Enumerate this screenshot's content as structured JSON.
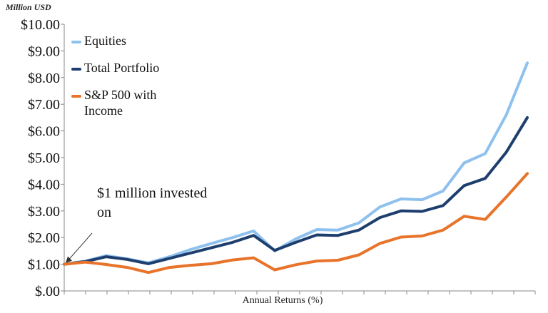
{
  "chart_data": {
    "type": "line",
    "title": "",
    "unit_label": "Million USD",
    "xlabel": "Annual Returns (%)",
    "ylabel": "",
    "ylim": [
      0,
      10
    ],
    "y_ticks": [
      "$10.00",
      "$9.00",
      "$8.00",
      "$7.00",
      "$6.00",
      "$5.00",
      "$4.00",
      "$3.00",
      "$2.00",
      "$1.00",
      "$.00"
    ],
    "grid": false,
    "legend_position": "top-left",
    "x": [
      0,
      1,
      2,
      3,
      4,
      5,
      6,
      7,
      8,
      9,
      10,
      11,
      12,
      13,
      14,
      15,
      16,
      17,
      18,
      19,
      20,
      21,
      22
    ],
    "series": [
      {
        "name": "Equities",
        "color": "#8EC1EE",
        "values": [
          1.0,
          1.12,
          1.32,
          1.2,
          1.05,
          1.28,
          1.55,
          1.78,
          2.0,
          2.25,
          1.5,
          1.95,
          2.3,
          2.28,
          2.55,
          3.15,
          3.45,
          3.42,
          3.75,
          4.8,
          5.15,
          6.6,
          8.55
        ]
      },
      {
        "name": "Total Portfolio",
        "color": "#1E3F6E",
        "values": [
          1.0,
          1.1,
          1.28,
          1.18,
          1.02,
          1.22,
          1.42,
          1.62,
          1.82,
          2.08,
          1.52,
          1.82,
          2.1,
          2.08,
          2.28,
          2.75,
          3.0,
          2.98,
          3.2,
          3.95,
          4.22,
          5.2,
          6.5
        ]
      },
      {
        "name": "S&P 500 with Income",
        "color": "#E8732A",
        "values": [
          1.0,
          1.08,
          0.99,
          0.88,
          0.69,
          0.88,
          0.96,
          1.02,
          1.16,
          1.24,
          0.79,
          0.98,
          1.12,
          1.15,
          1.35,
          1.78,
          2.02,
          2.06,
          2.28,
          2.8,
          2.68,
          3.52,
          4.4
        ]
      }
    ],
    "annotation": "$1 million invested on"
  }
}
